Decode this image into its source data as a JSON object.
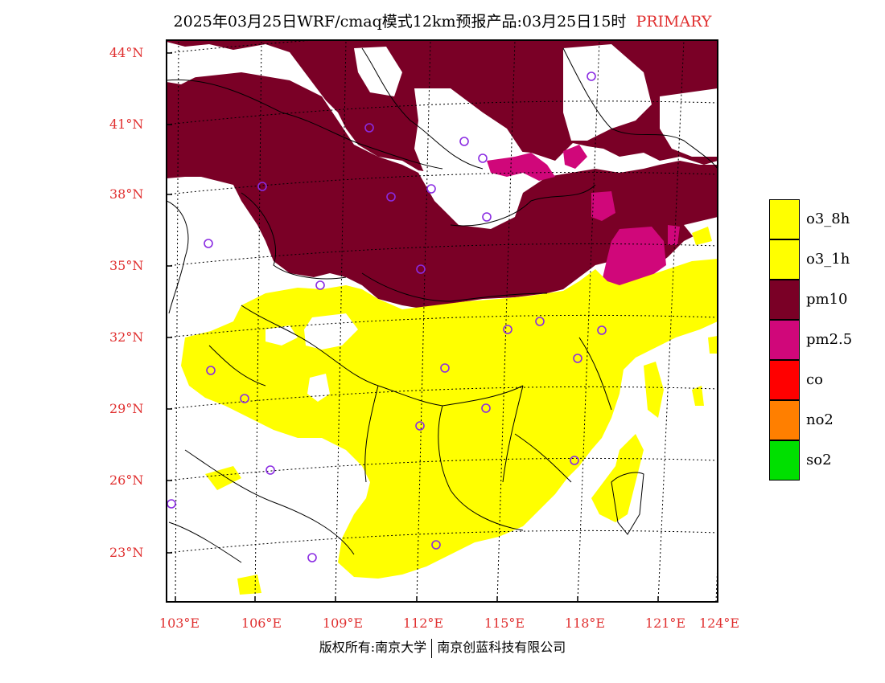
{
  "title": {
    "main": "2025年03月25日WRF/cmaq模式12km预报产品:03月25日15时",
    "tag": "PRIMARY"
  },
  "axes": {
    "lat_labels": [
      "44°N",
      "41°N",
      "38°N",
      "35°N",
      "32°N",
      "29°N",
      "26°N",
      "23°N"
    ],
    "lon_labels": [
      "103°E",
      "106°E",
      "109°E",
      "112°E",
      "115°E",
      "118°E",
      "121°E",
      "124°E"
    ]
  },
  "legend": [
    {
      "label": "o3_8h",
      "color": "#ffff00"
    },
    {
      "label": "o3_1h",
      "color": "#ffff00"
    },
    {
      "label": "pm10",
      "color": "#7a0026"
    },
    {
      "label": "pm2.5",
      "color": "#d0077a"
    },
    {
      "label": "co",
      "color": "#ff0000"
    },
    {
      "label": "no2",
      "color": "#ff7f00"
    },
    {
      "label": "so2",
      "color": "#00e000"
    }
  ],
  "footer": {
    "left": "版权所有:南京大学",
    "right": "南京创蓝科技有限公司"
  },
  "colors": {
    "accent": "#e03030",
    "pm10": "#7a0026",
    "pm25": "#d0077a",
    "o3": "#ffff00",
    "station": "#8a2be2"
  }
}
